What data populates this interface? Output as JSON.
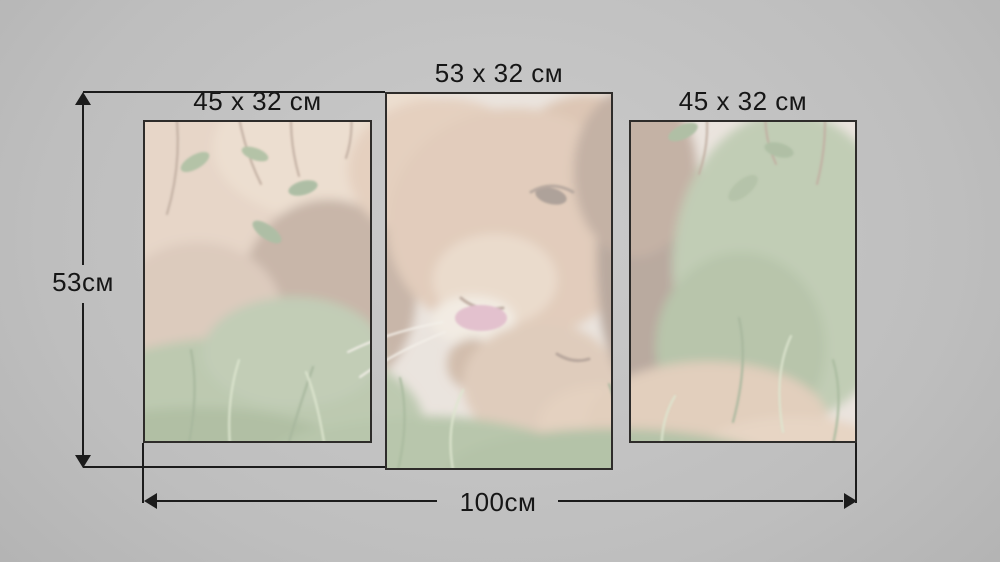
{
  "mockup": {
    "type": "triptych-canvas-size-mockup",
    "artwork_subject": "lion licking a lion cub lying in green grass",
    "panels": [
      {
        "position": "left",
        "size_label": "45 x 32 см"
      },
      {
        "position": "center",
        "size_label": "53 x 32 см"
      },
      {
        "position": "right",
        "size_label": "45 x 32 см"
      }
    ],
    "overall_dimensions": {
      "height_label": "53см",
      "width_label": "100см"
    },
    "colors": {
      "dimension_lines": "#1c1c1c",
      "label_text": "#161616",
      "panel_border": "#2e2c2a",
      "background_center": "#cbcbcb",
      "background_edge": "#8f8f8f"
    }
  }
}
